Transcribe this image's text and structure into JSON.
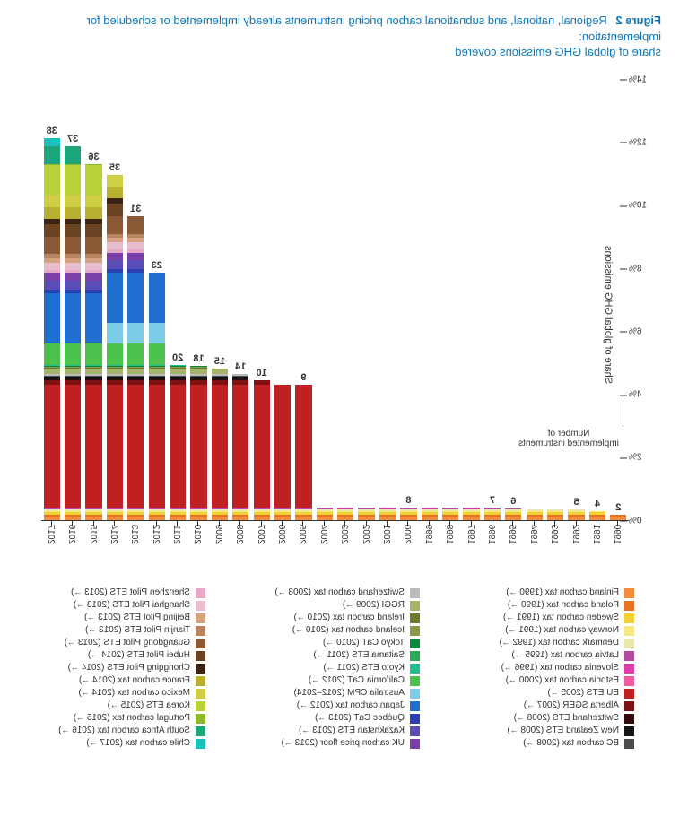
{
  "title": {
    "figure_label": "Figure 2",
    "line1": "Regional, national, and subnational carbon pricing instruments already implemented or scheduled for implementation:",
    "line2": "share of global GHG emissions covered",
    "color": "#0b78bd",
    "fontsize": 13
  },
  "annotation": {
    "line1": "Number of",
    "line2": "implemented instruments"
  },
  "chart": {
    "type": "stacked-bar",
    "y_label": "Share of global GHG emissions",
    "ymax": 14,
    "ytick_step": 2,
    "y_suffix": "%",
    "background_color": "#ffffff",
    "label_fontsize": 11,
    "years": [
      1990,
      1991,
      1992,
      1993,
      1994,
      1995,
      1996,
      1997,
      1998,
      1999,
      2000,
      2001,
      2002,
      2003,
      2004,
      2005,
      2006,
      2007,
      2008,
      2009,
      2010,
      2011,
      2012,
      2013,
      2014,
      2015,
      2016,
      2017
    ],
    "bar_count_labels": {
      "1990": "2",
      "1991": "4",
      "1992": "5",
      "1995": "6",
      "1996": "7",
      "2000": "8",
      "2005": "9",
      "2007": "10",
      "2008": "14",
      "2009": "15",
      "2010": "18",
      "2011": "20",
      "2012": "23",
      "2013": "31",
      "2014": "35",
      "2015": "36",
      "2016": "37",
      "2017": "38"
    },
    "series": [
      {
        "key": "finland",
        "label": "Finland carbon tax (1990 →)",
        "color": "#f58b3c",
        "start": 1990,
        "value": 0.1
      },
      {
        "key": "poland",
        "label": "Poland carbon tax (1990 →)",
        "color": "#e57324",
        "start": 1990,
        "value": 0.06
      },
      {
        "key": "sweden",
        "label": "Sweden carbon tax (1991 →)",
        "color": "#f3d133",
        "start": 1991,
        "value": 0.08
      },
      {
        "key": "norway",
        "label": "Norway carbon tax (1991 →)",
        "color": "#f7e783",
        "start": 1991,
        "value": 0.05
      },
      {
        "key": "denmark",
        "label": "Denmark carbon tax (1992 →)",
        "color": "#e8e8aa",
        "start": 1992,
        "value": 0.05
      },
      {
        "key": "latvia",
        "label": "Latvia carbon tax (1995 →)",
        "color": "#b44a9e",
        "start": 1995,
        "value": 0.02
      },
      {
        "key": "slovenia",
        "label": "Slovenia carbon tax (1996 →)",
        "color": "#df3ea9",
        "start": 1996,
        "value": 0.02
      },
      {
        "key": "estonia",
        "label": "Estonia carbon tax (2000 →)",
        "color": "#ef5aa0",
        "start": 2000,
        "value": 0.02
      },
      {
        "key": "euets",
        "label": "EU ETS (2005 →)",
        "color": "#c12022",
        "start": 2005,
        "value": 3.9
      },
      {
        "key": "alberta",
        "label": "Alberta SGER (2007 →)",
        "color": "#7d1114",
        "start": 2007,
        "value": 0.14
      },
      {
        "key": "swissets",
        "label": "Switzerland ETS (2008 →)",
        "color": "#350a0a",
        "start": 2008,
        "value": 0.02
      },
      {
        "key": "nzets",
        "label": "New Zealand ETS (2008 →)",
        "color": "#161616",
        "start": 2008,
        "value": 0.08
      },
      {
        "key": "bc",
        "label": "BC carbon tax (2008 →)",
        "color": "#4d4d4d",
        "start": 2008,
        "value": 0.05
      },
      {
        "key": "swisstax",
        "label": "Switzerland carbon tax (2008 →)",
        "color": "#bcbcbc",
        "start": 2008,
        "value": 0.03
      },
      {
        "key": "rggi",
        "label": "RGGI (2009 →)",
        "color": "#a4b56b",
        "start": 2009,
        "value": 0.18
      },
      {
        "key": "ireland",
        "label": "Ireland carbon tax (2010 →)",
        "color": "#6d7b2e",
        "start": 2010,
        "value": 0.04
      },
      {
        "key": "iceland",
        "label": "Iceland carbon tax (2010 →)",
        "color": "#8b9a46",
        "start": 2010,
        "value": 0.01
      },
      {
        "key": "tokyo",
        "label": "Tokyo CaT (2010 →)",
        "color": "#0a8a3f",
        "start": 2010,
        "value": 0.03
      },
      {
        "key": "saitama",
        "label": "Saitama ETS (2011 →)",
        "color": "#2aa956",
        "start": 2011,
        "value": 0.02
      },
      {
        "key": "kyotoets",
        "label": "Kyoto ETS (2011 →)",
        "color": "#1fbf8f",
        "start": 2011,
        "value": 0.01
      },
      {
        "key": "california",
        "label": "California CaT (2012 →)",
        "color": "#4cc24e",
        "start": 2012,
        "value": 0.7
      },
      {
        "key": "australia",
        "label": "Australia CPM (2012–2014)",
        "color": "#7ecde8",
        "start": 2012,
        "end": 2014,
        "value": 0.65
      },
      {
        "key": "japantax",
        "label": "Japan carbon tax (2012 →)",
        "color": "#1f6fd1",
        "start": 2012,
        "value": 1.6
      },
      {
        "key": "quebec",
        "label": "Québec CaT (2013 →)",
        "color": "#2a3fb0",
        "start": 2013,
        "value": 0.1
      },
      {
        "key": "kazakhstan",
        "label": "Kazakhstan ETS (2013 →)",
        "color": "#5a4db8",
        "start": 2013,
        "value": 0.28
      },
      {
        "key": "ukfloor",
        "label": "UK carbon price floor (2013 →)",
        "color": "#7a3fa8",
        "start": 2013,
        "value": 0.25
      },
      {
        "key": "shenzhen",
        "label": "Shenzhen Pilot ETS (2013 →)",
        "color": "#e6a9c9",
        "start": 2013,
        "value": 0.1
      },
      {
        "key": "shanghai",
        "label": "Shanghai Pilot ETS (2013 →)",
        "color": "#e9bdd0",
        "start": 2013,
        "value": 0.22
      },
      {
        "key": "beijing",
        "label": "Beijing Pilot ETS (2013 →)",
        "color": "#d7a183",
        "start": 2013,
        "value": 0.14
      },
      {
        "key": "tianjin",
        "label": "Tianjin Pilot ETS (2013 →)",
        "color": "#b98462",
        "start": 2013,
        "value": 0.14
      },
      {
        "key": "guangdong",
        "label": "Guangdong Pilot ETS (2013 →)",
        "color": "#8a5a36",
        "start": 2013,
        "value": 0.55
      },
      {
        "key": "hubei",
        "label": "Hubei Pilot ETS (2014 →)",
        "color": "#6a4322",
        "start": 2014,
        "value": 0.4
      },
      {
        "key": "chongqing",
        "label": "Chongqing Pilot ETS (2014 →)",
        "color": "#3b2512",
        "start": 2014,
        "value": 0.18
      },
      {
        "key": "france",
        "label": "France carbon tax (2014 →)",
        "color": "#b8b031",
        "start": 2014,
        "value": 0.35
      },
      {
        "key": "mexico",
        "label": "Mexico carbon tax (2014 →)",
        "color": "#cfcf45",
        "start": 2014,
        "value": 0.4
      },
      {
        "key": "korea",
        "label": "Korea ETS (2015 →)",
        "color": "#b9d23a",
        "start": 2015,
        "value": 0.95
      },
      {
        "key": "portugal",
        "label": "Portugal carbon tax (2015 →)",
        "color": "#8eb82e",
        "start": 2015,
        "value": 0.04
      },
      {
        "key": "safrica",
        "label": "South Africa carbon tax (2016 →)",
        "color": "#1aa57a",
        "start": 2016,
        "value": 0.55
      },
      {
        "key": "chile",
        "label": "Chile carbon tax (2017 →)",
        "color": "#17c0b8",
        "start": 2017,
        "value": 0.25
      }
    ],
    "legend_columns": [
      [
        "finland",
        "poland",
        "sweden",
        "norway",
        "denmark",
        "latvia",
        "slovenia",
        "estonia",
        "euets",
        "alberta",
        "swissets",
        "nzets",
        "bc"
      ],
      [
        "swisstax",
        "rggi",
        "ireland",
        "iceland",
        "tokyo",
        "saitama",
        "kyotoets",
        "california",
        "australia",
        "japantax",
        "quebec",
        "kazakhstan",
        "ukfloor"
      ],
      [
        "shenzhen",
        "shanghai",
        "beijing",
        "tianjin",
        "guangdong",
        "hubei",
        "chongqing",
        "france",
        "mexico",
        "korea",
        "portugal",
        "safrica",
        "chile"
      ]
    ]
  }
}
